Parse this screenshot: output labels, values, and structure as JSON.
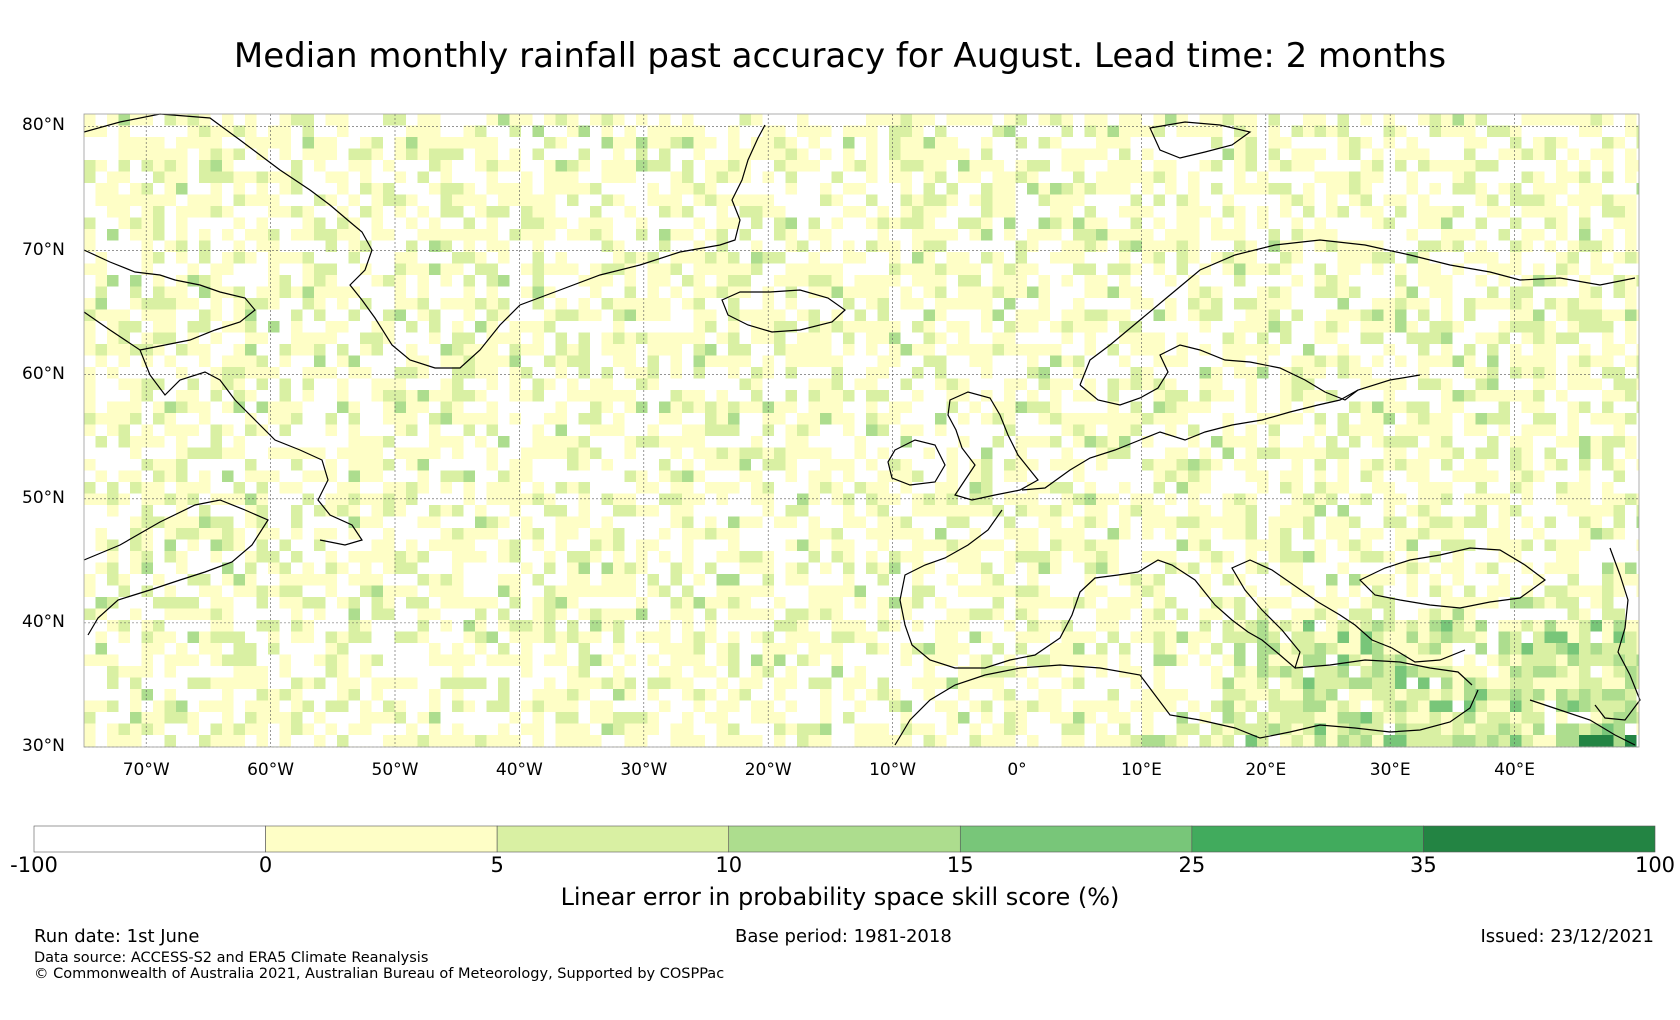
{
  "title": "Median monthly rainfall past accuracy for August. Lead time: 2 months",
  "map": {
    "lat_labels": [
      "80°N",
      "70°N",
      "60°N",
      "50°N",
      "40°N",
      "30°N"
    ],
    "lon_labels": [
      "70°W",
      "60°W",
      "50°W",
      "40°W",
      "30°W",
      "20°W",
      "10°W",
      "0°",
      "10°E",
      "20°E",
      "30°E",
      "40°E"
    ],
    "lat_range": [
      30,
      81
    ],
    "lon_range": [
      -75,
      50
    ],
    "gridlines": true
  },
  "colorbar": {
    "label": "Linear error in probability space skill score (%)",
    "ticks": [
      "-100",
      "0",
      "5",
      "10",
      "15",
      "25",
      "35",
      "100"
    ],
    "bins": [
      {
        "from": -100,
        "to": 0,
        "color": "#ffffff"
      },
      {
        "from": 0,
        "to": 5,
        "color": "#fefec6"
      },
      {
        "from": 5,
        "to": 10,
        "color": "#d9f0a3"
      },
      {
        "from": 10,
        "to": 15,
        "color": "#addd8e"
      },
      {
        "from": 15,
        "to": 25,
        "color": "#78c679"
      },
      {
        "from": 25,
        "to": 35,
        "color": "#41ab5d"
      },
      {
        "from": 35,
        "to": 100,
        "color": "#238443"
      }
    ]
  },
  "footer": {
    "run_date": "Run date: 1st June",
    "base_period": "Base period: 1981-2018",
    "issued": "Issued: 23/12/2021",
    "data_source": "Data source: ACCESS-S2 and ERA5 Climate Reanalysis",
    "copyright": "© Commonwealth of Australia 2021, Australian Bureau of Meteorology, Supported by COSPPac"
  }
}
